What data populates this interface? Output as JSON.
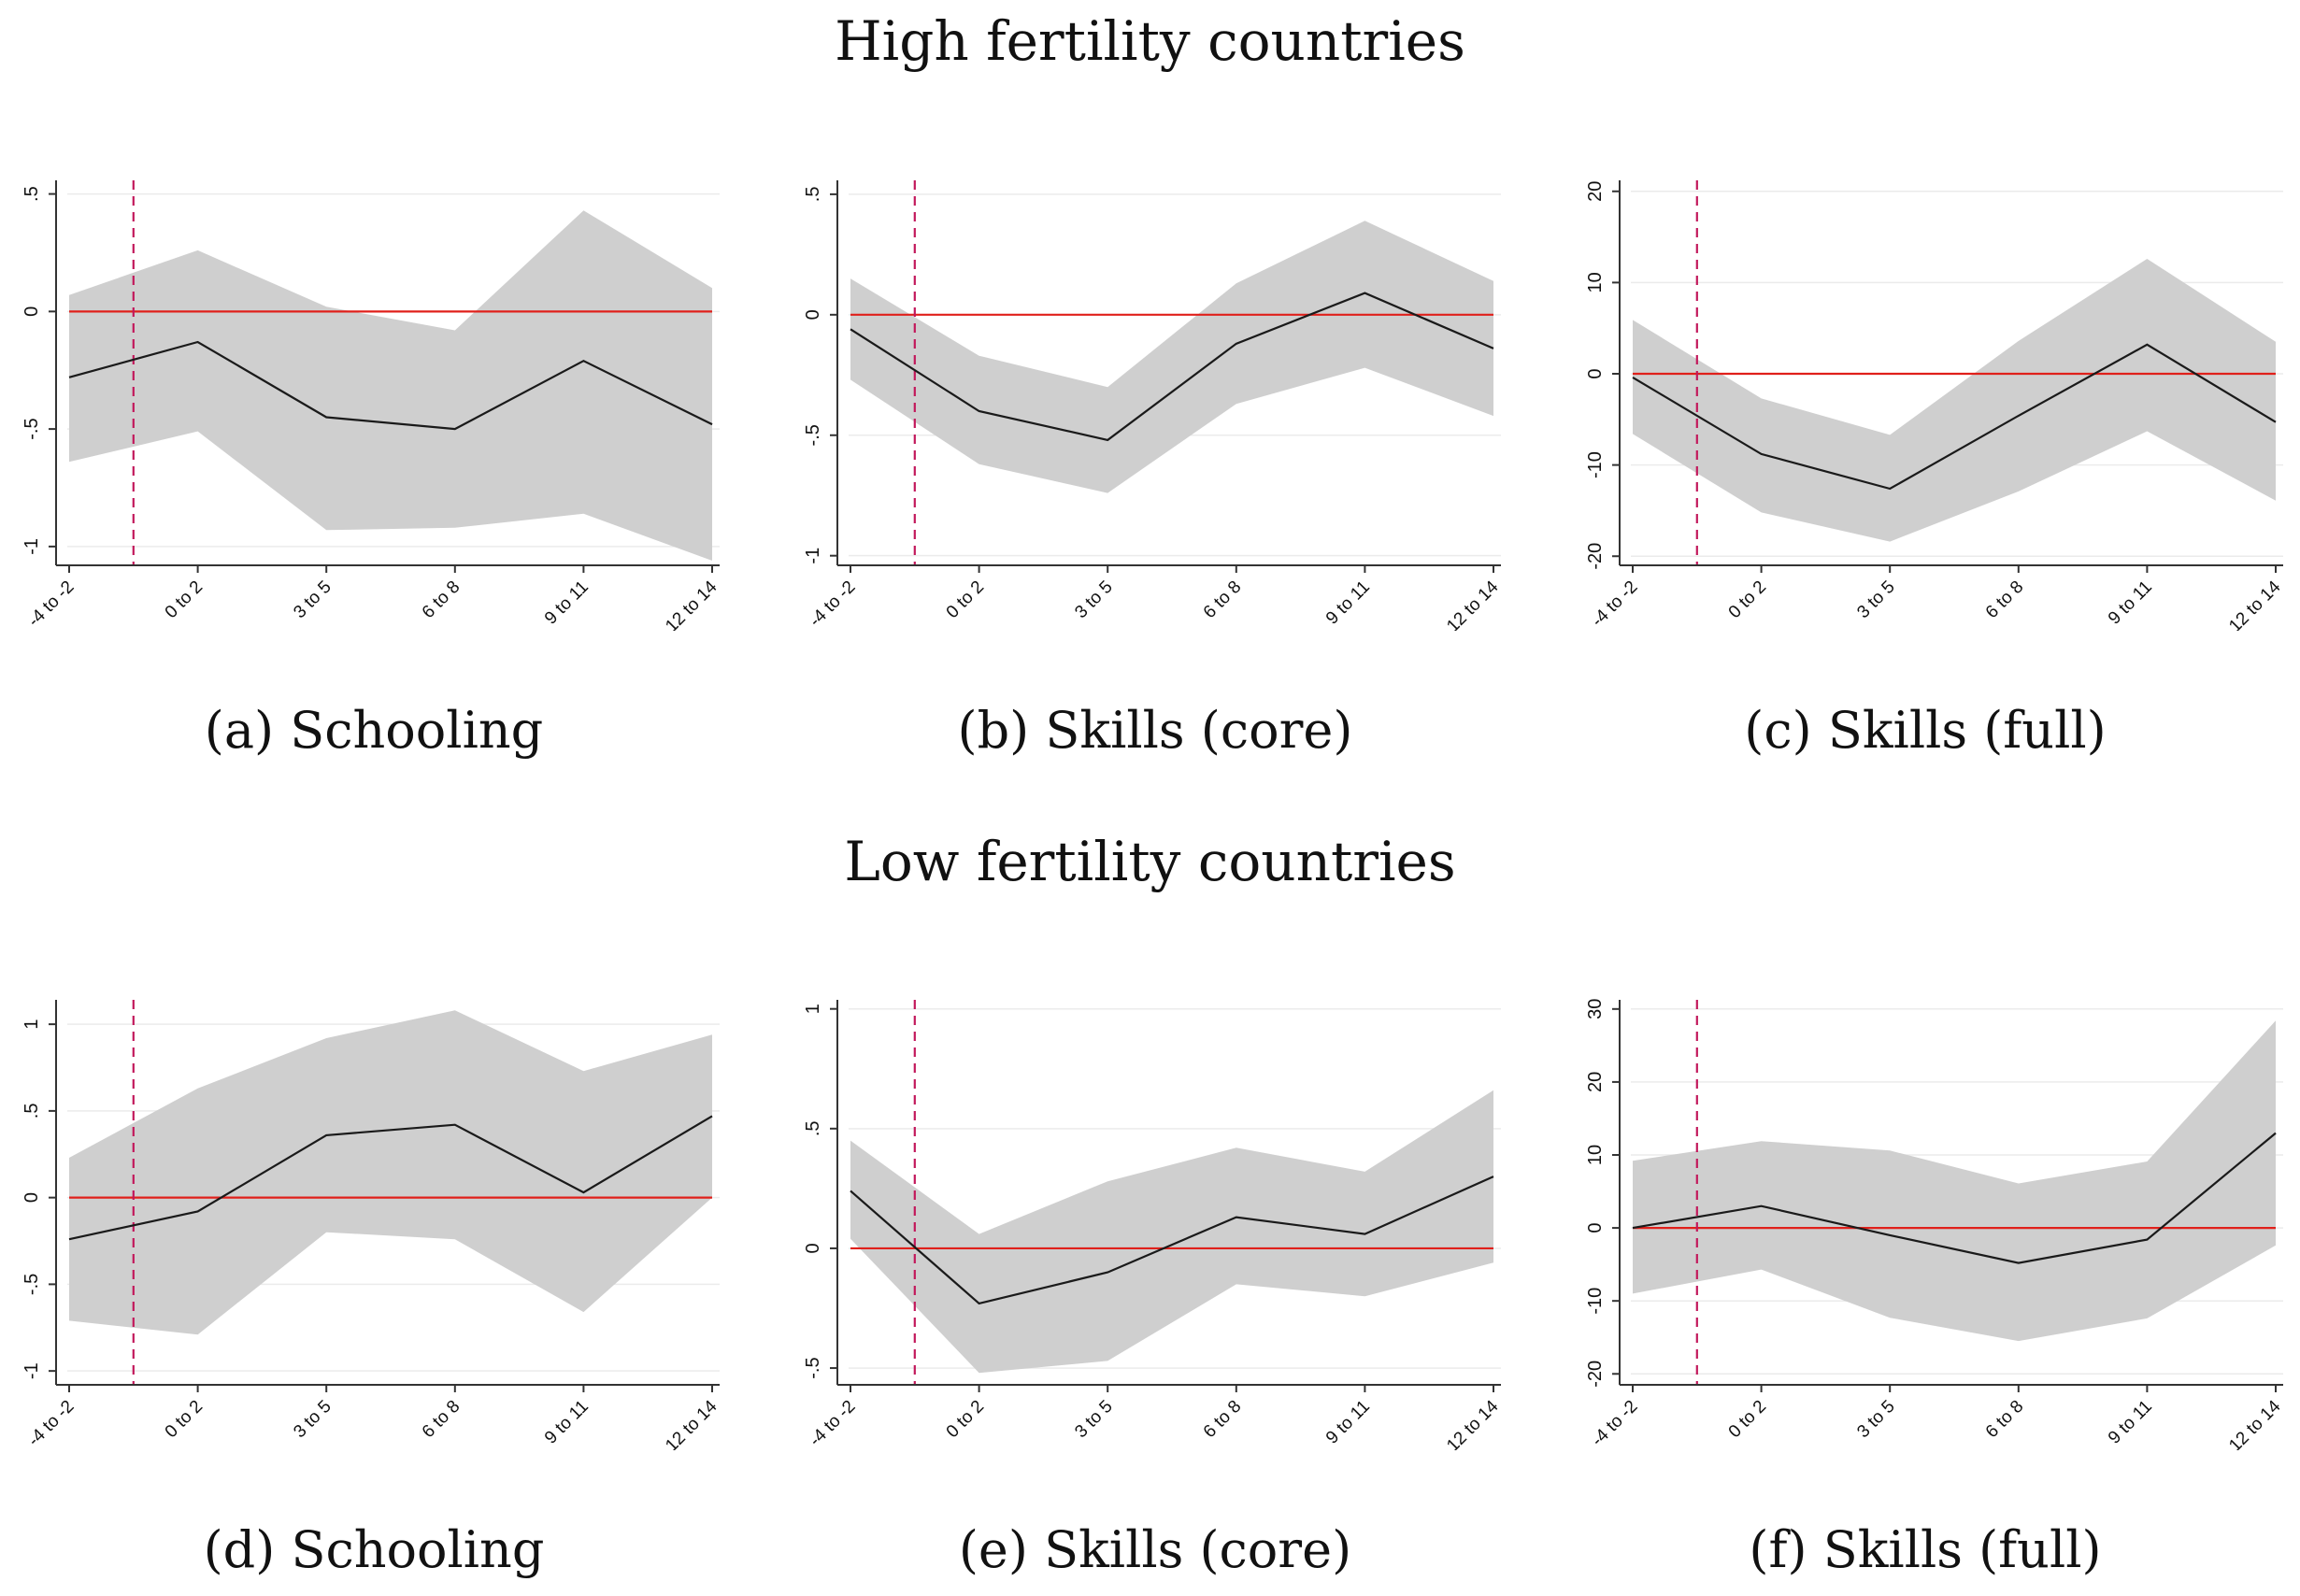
{
  "headings": {
    "high": "High fertility countries",
    "low": "Low fertility countries"
  },
  "captions": [
    "(a) Schooling",
    "(b) Skills (core)",
    "(c) Skills (full)",
    "(d) Schooling",
    "(e) Skills (core)",
    "(f) Skills (full)"
  ],
  "colors": {
    "ci_band": "#cfcfcf",
    "estimate_line": "#1a1a1a",
    "zero_line": "#e0201b",
    "event_line": "#c2185b",
    "grid": "#ebebeb"
  },
  "chart_data": [
    {
      "type": "line",
      "categories": [
        "-4 to -2",
        "0 to 2",
        "3 to 5",
        "6 to 8",
        "9 to 11",
        "12 to 14"
      ],
      "series": [
        {
          "values": [
            -0.28,
            -0.13,
            -0.45,
            -0.5,
            -0.21,
            -0.48
          ]
        }
      ],
      "ci_lower": [
        -0.64,
        -0.51,
        -0.93,
        -0.92,
        -0.86,
        -1.06
      ],
      "ci_upper": [
        0.07,
        0.26,
        0.02,
        -0.08,
        0.43,
        0.1
      ],
      "yticks": [
        0.5,
        0,
        -0.5,
        -1
      ],
      "ytick_labels": [
        ".5",
        "0",
        "-.5",
        "-1"
      ],
      "ylim": [
        -1.08,
        0.55
      ],
      "reference_line_y": 0,
      "event_line_x": 0.5,
      "grid": "horizontal"
    },
    {
      "type": "line",
      "categories": [
        "-4 to -2",
        "0 to 2",
        "3 to 5",
        "6 to 8",
        "9 to 11",
        "12 to 14"
      ],
      "series": [
        {
          "values": [
            -0.06,
            -0.4,
            -0.52,
            -0.12,
            0.09,
            -0.14
          ]
        }
      ],
      "ci_lower": [
        -0.27,
        -0.62,
        -0.74,
        -0.37,
        -0.22,
        -0.42
      ],
      "ci_upper": [
        0.15,
        -0.17,
        -0.3,
        0.13,
        0.39,
        0.14
      ],
      "yticks": [
        0.5,
        0,
        -0.5,
        -1
      ],
      "ytick_labels": [
        ".5",
        "0",
        "-.5",
        "-1"
      ],
      "ylim": [
        -1.04,
        0.55
      ],
      "reference_line_y": 0,
      "event_line_x": 0.5,
      "grid": "horizontal"
    },
    {
      "type": "line",
      "categories": [
        "-4 to -2",
        "0 to 2",
        "3 to 5",
        "6 to 8",
        "9 to 11",
        "12 to 14"
      ],
      "series": [
        {
          "values": [
            -0.4,
            -8.8,
            -12.6,
            -4.6,
            3.2,
            -5.3
          ]
        }
      ],
      "ci_lower": [
        -6.6,
        -15.2,
        -18.4,
        -12.9,
        -6.3,
        -13.9
      ],
      "ci_upper": [
        5.9,
        -2.7,
        -6.7,
        3.6,
        12.6,
        3.5
      ],
      "yticks": [
        20,
        10,
        0,
        -10,
        -20
      ],
      "ytick_labels": [
        "20",
        "10",
        "0",
        "-10",
        "-20"
      ],
      "ylim": [
        -21,
        21
      ],
      "reference_line_y": 0,
      "event_line_x": 0.5,
      "grid": "horizontal"
    },
    {
      "type": "line",
      "categories": [
        "-4 to -2",
        "0 to 2",
        "3 to 5",
        "6 to 8",
        "9 to 11",
        "12 to 14"
      ],
      "series": [
        {
          "values": [
            -0.24,
            -0.08,
            0.36,
            0.42,
            0.03,
            0.47
          ]
        }
      ],
      "ci_lower": [
        -0.71,
        -0.79,
        -0.2,
        -0.24,
        -0.66,
        0.0
      ],
      "ci_upper": [
        0.23,
        0.63,
        0.92,
        1.08,
        0.73,
        0.94
      ],
      "yticks": [
        1,
        0.5,
        0,
        -0.5,
        -1
      ],
      "ytick_labels": [
        "1",
        ".5",
        "0",
        "-.5",
        "-1"
      ],
      "ylim": [
        -1.08,
        1.13
      ],
      "reference_line_y": 0,
      "event_line_x": 0.5,
      "grid": "horizontal"
    },
    {
      "type": "line",
      "categories": [
        "-4 to -2",
        "0 to 2",
        "3 to 5",
        "6 to 8",
        "9 to 11",
        "12 to 14"
      ],
      "series": [
        {
          "values": [
            0.24,
            -0.23,
            -0.1,
            0.13,
            0.06,
            0.3
          ]
        }
      ],
      "ci_lower": [
        0.04,
        -0.52,
        -0.47,
        -0.15,
        -0.2,
        -0.06
      ],
      "ci_upper": [
        0.45,
        0.06,
        0.28,
        0.42,
        0.32,
        0.66
      ],
      "yticks": [
        1,
        0.5,
        0,
        -0.5
      ],
      "ytick_labels": [
        "1",
        ".5",
        "0",
        "-.5"
      ],
      "ylim": [
        -0.57,
        1.03
      ],
      "reference_line_y": 0,
      "event_line_x": 0.5,
      "grid": "horizontal"
    },
    {
      "type": "line",
      "categories": [
        "-4 to -2",
        "0 to 2",
        "3 to 5",
        "6 to 8",
        "9 to 11",
        "12 to 14"
      ],
      "series": [
        {
          "values": [
            0.0,
            3.0,
            -1.0,
            -4.8,
            -1.6,
            13.0
          ]
        }
      ],
      "ci_lower": [
        -9.0,
        -5.7,
        -12.3,
        -15.5,
        -12.4,
        -2.4
      ],
      "ci_upper": [
        9.2,
        11.9,
        10.6,
        6.1,
        9.1,
        28.4
      ],
      "yticks": [
        30,
        20,
        10,
        0,
        -10,
        -20
      ],
      "ytick_labels": [
        "30",
        "20",
        "10",
        "0",
        "-10",
        "-20"
      ],
      "ylim": [
        -21.5,
        31
      ],
      "reference_line_y": 0,
      "event_line_x": 0.5,
      "grid": "horizontal"
    }
  ]
}
